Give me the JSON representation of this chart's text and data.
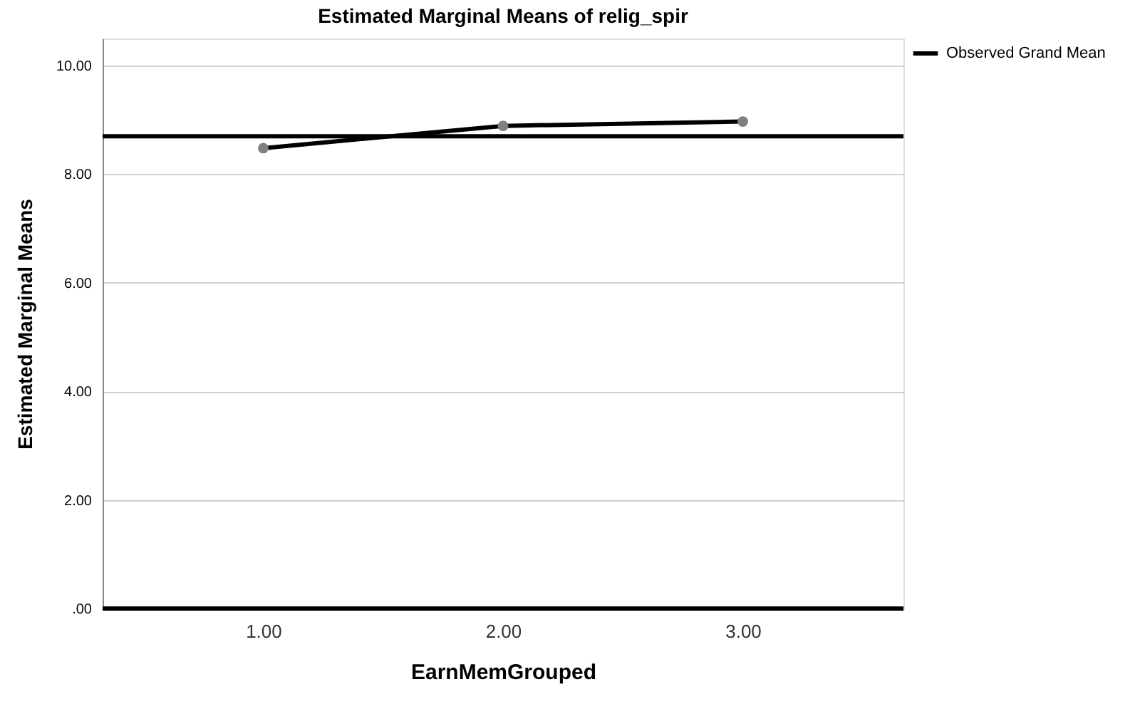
{
  "chart_data": {
    "type": "line",
    "title": "Estimated Marginal Means of relig_spir",
    "xlabel": "EarnMemGrouped",
    "ylabel": "Estimated Marginal Means",
    "categories": [
      "1.00",
      "2.00",
      "3.00"
    ],
    "series": [
      {
        "color": "#000000",
        "values": [
          8.48,
          8.89,
          8.97
        ]
      }
    ],
    "marker": "circle",
    "ylim": [
      0,
      10.5
    ],
    "yticks": [
      {
        "value": 0,
        "label": ".00"
      },
      {
        "value": 2,
        "label": "2.00"
      },
      {
        "value": 4,
        "label": "4.00"
      },
      {
        "value": 6,
        "label": "6.00"
      },
      {
        "value": 8,
        "label": "8.00"
      },
      {
        "value": 10,
        "label": "10.00"
      }
    ],
    "grid": "y",
    "ref_lines": [
      {
        "axis": "y",
        "value": 8.7,
        "label": "Observed Grand Mean",
        "color": "#000000"
      }
    ],
    "legend": "top right"
  }
}
